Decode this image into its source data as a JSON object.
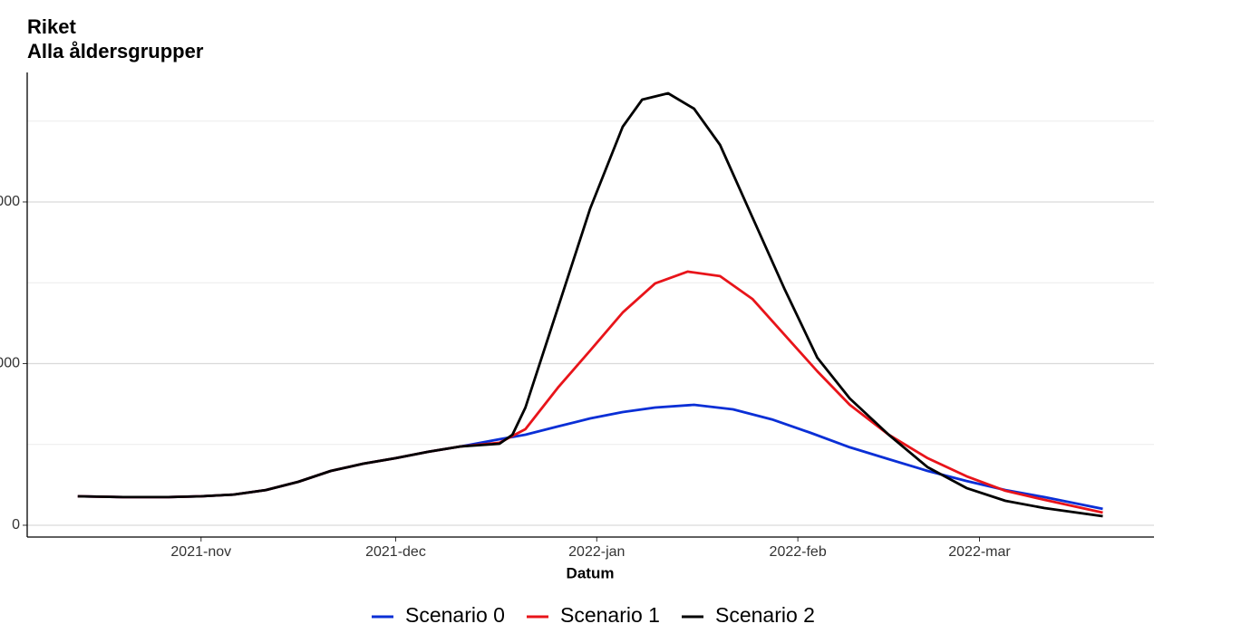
{
  "chart_data": {
    "type": "line",
    "title": "Riket",
    "subtitle": "Alla åldersgrupper",
    "x_label": "Datum",
    "xlim": [
      -26.8,
      146.9
    ],
    "xticks": [
      {
        "value": 0,
        "label": "2021-nov"
      },
      {
        "value": 30,
        "label": "2021-dec"
      },
      {
        "value": 61,
        "label": "2022-jan"
      },
      {
        "value": 92,
        "label": "2022-feb"
      },
      {
        "value": 120,
        "label": "2022-mar"
      }
    ],
    "ylim": [
      -730,
      28010
    ],
    "yticks": [
      0,
      {
        "value": 10000,
        "label": "000"
      },
      {
        "value": 20000,
        "label": "000"
      }
    ],
    "minor_yticks": [
      5000,
      15000,
      25000
    ],
    "grid": true,
    "legend": "bottom",
    "series": [
      {
        "name": "Scenario 0",
        "color": "#0a2fd6",
        "x": [
          -19,
          -12,
          -5,
          0,
          5,
          10,
          15,
          20,
          25,
          30,
          35,
          40,
          46,
          50,
          55,
          60,
          65,
          70,
          76,
          82,
          88,
          94,
          100,
          106,
          112,
          118,
          124,
          130,
          139
        ],
        "values": [
          1790,
          1740,
          1740,
          1790,
          1900,
          2180,
          2690,
          3360,
          3810,
          4150,
          4540,
          4870,
          5320,
          5600,
          6110,
          6610,
          7000,
          7280,
          7450,
          7170,
          6550,
          5710,
          4820,
          4090,
          3360,
          2740,
          2180,
          1740,
          1010
        ]
      },
      {
        "name": "Scenario 1",
        "color": "#e8141a",
        "x": [
          -19,
          -12,
          -5,
          0,
          5,
          10,
          15,
          20,
          25,
          30,
          35,
          40,
          46,
          50,
          55,
          60,
          65,
          70,
          75,
          80,
          85,
          90,
          95,
          100,
          106,
          112,
          118,
          124,
          130,
          139
        ],
        "values": [
          1790,
          1740,
          1740,
          1790,
          1900,
          2180,
          2690,
          3360,
          3810,
          4150,
          4540,
          4870,
          5100,
          5940,
          8510,
          10810,
          13160,
          14960,
          15690,
          15410,
          14000,
          11760,
          9520,
          7450,
          5600,
          4150,
          3030,
          2130,
          1570,
          780
        ]
      },
      {
        "name": "Scenario 2",
        "color": "#000000",
        "x": [
          -19,
          -12,
          -5,
          0,
          5,
          10,
          15,
          20,
          25,
          30,
          35,
          40,
          46,
          48,
          50,
          55,
          60,
          65,
          68,
          72,
          76,
          80,
          85,
          90,
          95,
          100,
          106,
          112,
          118,
          124,
          130,
          139
        ],
        "values": [
          1790,
          1740,
          1740,
          1790,
          1900,
          2180,
          2690,
          3360,
          3810,
          4150,
          4540,
          4870,
          5040,
          5600,
          7280,
          13440,
          19600,
          24650,
          26330,
          26720,
          25770,
          23530,
          19050,
          14570,
          10360,
          7840,
          5600,
          3590,
          2300,
          1510,
          1060,
          560
        ]
      }
    ]
  }
}
